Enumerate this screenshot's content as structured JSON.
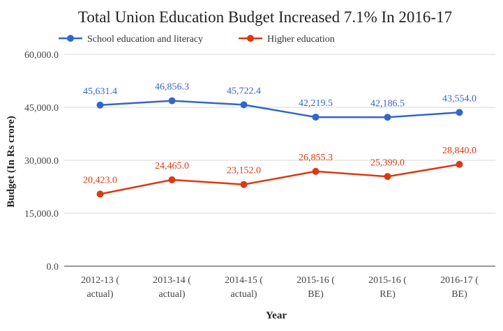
{
  "chart_data": {
    "type": "line",
    "title": "Total Union Education Budget Increased 7.1% In 2016-17",
    "xlabel": "Year",
    "ylabel": "Budget (In Rs crore)",
    "ylim": [
      0,
      60000
    ],
    "yticks": [
      "0.0",
      "15,000.0",
      "30,000.0",
      "45,000.0",
      "60,000.0"
    ],
    "ytick_values": [
      0,
      15000,
      30000,
      45000,
      60000
    ],
    "grid": true,
    "legend_position": "top-left",
    "categories": [
      [
        "2012-13 (",
        "actual)"
      ],
      [
        "2013-14 (",
        "actual)"
      ],
      [
        "2014-15 (",
        "actual)"
      ],
      [
        "2015-16 (",
        "BE)"
      ],
      [
        "2015-16 (",
        "RE)"
      ],
      [
        "2016-17 (",
        "BE)"
      ]
    ],
    "series": [
      {
        "name": "School education and literacy",
        "color": "#3366cc",
        "values": [
          45631.4,
          46856.3,
          45722.4,
          42219.5,
          42186.5,
          43554.0
        ],
        "labels": [
          "45,631.4",
          "46,856.3",
          "45,722.4",
          "42,219.5",
          "42,186.5",
          "43,554.0"
        ]
      },
      {
        "name": "Higher education",
        "color": "#dc3912",
        "values": [
          20423.0,
          24465.0,
          23152.0,
          26855.3,
          25399.0,
          28840.0
        ],
        "labels": [
          "20,423.0",
          "24,465.0",
          "23,152.0",
          "26,855.3",
          "25,399.0",
          "28,840.0"
        ]
      }
    ]
  }
}
